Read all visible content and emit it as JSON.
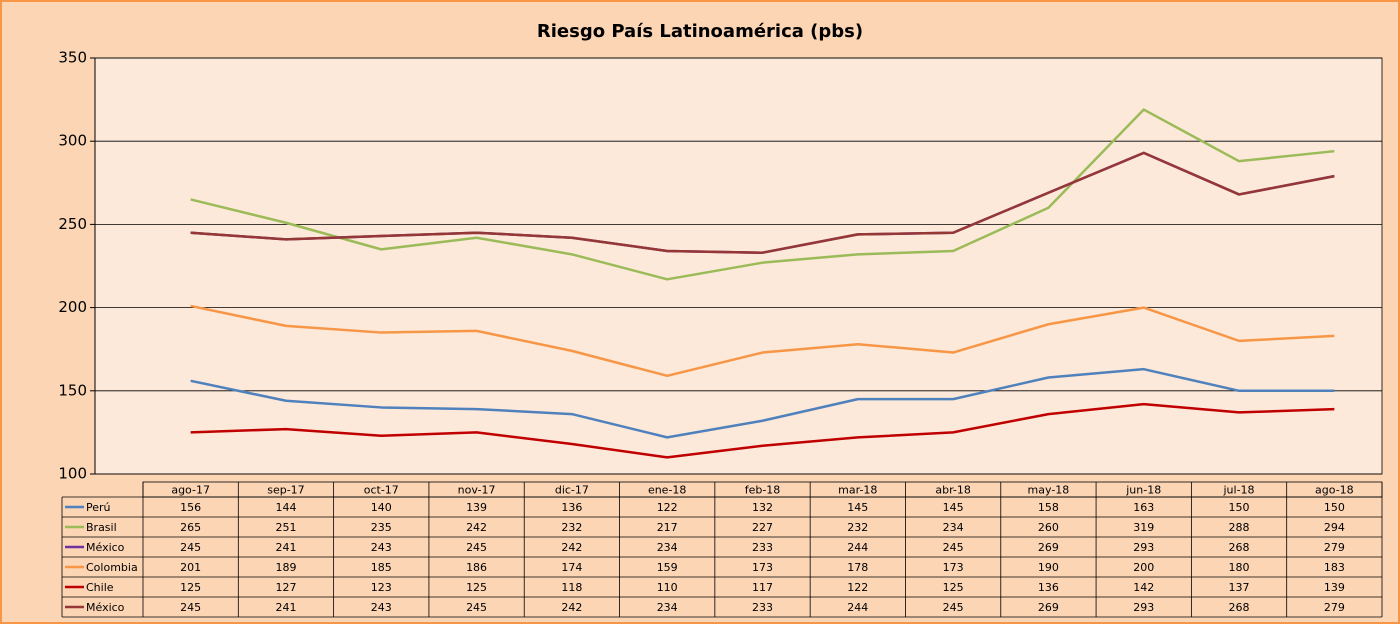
{
  "chart_data": {
    "type": "line",
    "title": "Riesgo País Latinoamérica (pbs)",
    "categories": [
      "ago-17",
      "sep-17",
      "oct-17",
      "nov-17",
      "dic-17",
      "ene-18",
      "feb-18",
      "mar-18",
      "abr-18",
      "may-18",
      "jun-18",
      "jul-18",
      "ago-18"
    ],
    "series": [
      {
        "name": "Perú",
        "color": "#4f81bd",
        "values": [
          156,
          144,
          140,
          139,
          136,
          122,
          132,
          145,
          145,
          158,
          163,
          150,
          150
        ]
      },
      {
        "name": "Brasil",
        "color": "#9bbb59",
        "values": [
          265,
          251,
          235,
          242,
          232,
          217,
          227,
          232,
          234,
          260,
          319,
          288,
          294
        ]
      },
      {
        "name": "México",
        "color": "#7030a0",
        "values": [
          245,
          241,
          243,
          245,
          242,
          234,
          233,
          244,
          245,
          269,
          293,
          268,
          279
        ]
      },
      {
        "name": "Colombia",
        "color": "#f79646",
        "values": [
          201,
          189,
          185,
          186,
          174,
          159,
          173,
          178,
          173,
          190,
          200,
          180,
          183
        ]
      },
      {
        "name": "Chile",
        "color": "#c00000",
        "values": [
          125,
          127,
          123,
          125,
          118,
          110,
          117,
          122,
          125,
          136,
          142,
          137,
          139
        ]
      },
      {
        "name": "México",
        "color": "#953735",
        "values": [
          245,
          241,
          243,
          245,
          242,
          234,
          233,
          244,
          245,
          269,
          293,
          268,
          279
        ]
      }
    ],
    "ylim": [
      100,
      350
    ],
    "yticks": [
      100,
      150,
      200,
      250,
      300,
      350
    ],
    "grid": true
  }
}
